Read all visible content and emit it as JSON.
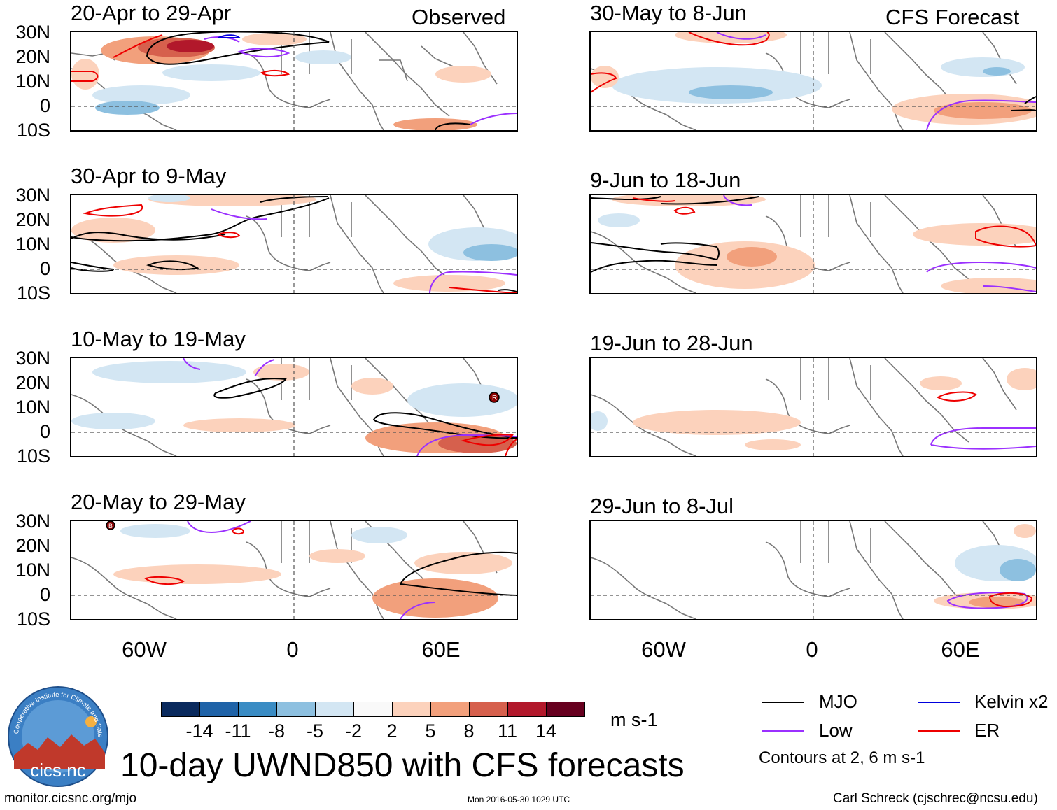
{
  "panels": [
    {
      "title": "20-Apr to 29-Apr",
      "label": "Observed"
    },
    {
      "title": "30-Apr to 9-May"
    },
    {
      "title": "10-May to 19-May"
    },
    {
      "title": "20-May to 29-May"
    },
    {
      "title": "30-May to 8-Jun",
      "label": "CFS Forecast"
    },
    {
      "title": "9-Jun to 18-Jun"
    },
    {
      "title": "19-Jun to 28-Jun"
    },
    {
      "title": "29-Jun to 8-Jul"
    }
  ],
  "latitude_labels": [
    "30N",
    "20N",
    "10N",
    "0",
    "10S"
  ],
  "longitude_labels": [
    "60W",
    "0",
    "60E"
  ],
  "colorbar": {
    "ticks": [
      "-14",
      "-11",
      "-8",
      "-5",
      "-2",
      "2",
      "5",
      "8",
      "11",
      "14"
    ],
    "units": "m s-1",
    "colors": [
      "#0a2a5e",
      "#1f63a8",
      "#3a8cc4",
      "#8dc0e0",
      "#d3e6f3",
      "#f9f9f9",
      "#fcd2bc",
      "#f2a07c",
      "#d6604d",
      "#b2182b",
      "#67001f"
    ]
  },
  "legend": {
    "items": [
      {
        "label": "MJO",
        "color": "#000000"
      },
      {
        "label": "Kelvin x2",
        "color": "#0000dd"
      },
      {
        "label": "Low",
        "color": "#9b30ff"
      },
      {
        "label": "ER",
        "color": "#ee0000"
      }
    ],
    "note": "Contours at 2, 6 m s-1"
  },
  "title": "10-day UWND850 with CFS forecasts",
  "footer": {
    "website": "monitor.cicsnc.org/mjo",
    "timestamp": "Mon 2016-05-30 1029 UTC",
    "author": "Carl Schreck (cjschrec@ncsu.edu)"
  },
  "logo": {
    "text": "cics.nc",
    "arc_text": "Cooperative Institute for Climate and Satellites"
  }
}
